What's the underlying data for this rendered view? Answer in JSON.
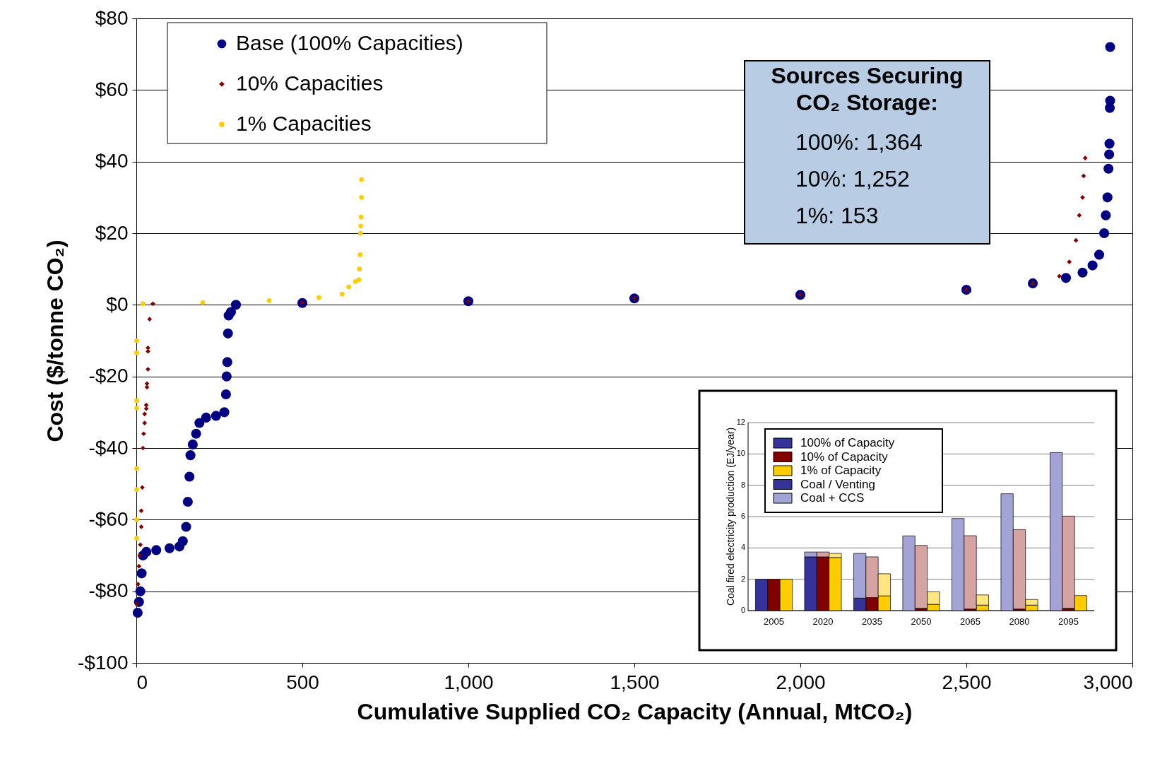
{
  "chart_data": [
    {
      "type": "scatter",
      "xlabel": "Cumulative Supplied CO₂ Capacity (Annual, MtCO₂)",
      "ylabel": "Cost ($/tonne CO₂)",
      "xlim": [
        0,
        3000
      ],
      "xticks": [
        0,
        500,
        {
          "value": 1000,
          "label": "1,000"
        },
        {
          "value": 1500,
          "label": "1,500"
        },
        {
          "value": 2000,
          "label": "2,000"
        },
        {
          "value": 2500,
          "label": "2,500"
        },
        {
          "value": 3000,
          "label": "3,000"
        }
      ],
      "ylim": [
        -100,
        80
      ],
      "yticks": [
        {
          "value": -100,
          "label": "-$100"
        },
        {
          "value": -80,
          "label": "-$80"
        },
        {
          "value": -60,
          "label": "-$60"
        },
        {
          "value": -40,
          "label": "-$40"
        },
        {
          "value": -20,
          "label": "-$20"
        },
        {
          "value": 0,
          "label": "$0"
        },
        {
          "value": 20,
          "label": "$20"
        },
        {
          "value": 40,
          "label": "$40"
        },
        {
          "value": 60,
          "label": "$60"
        },
        {
          "value": 80,
          "label": "$80"
        }
      ],
      "grid": "y",
      "legend": "top left",
      "annotations": [
        "Sources Securing CO₂ Storage:",
        "100%: 1,364",
        "10%: 1,252",
        "1%: 153"
      ],
      "series": [
        {
          "name": "Base (100% Capacities)",
          "color": "#000080",
          "marker": "circle",
          "x": [
            4,
            8,
            12,
            16,
            20,
            30,
            60,
            100,
            130,
            140,
            150,
            155,
            160,
            163,
            170,
            180,
            190,
            210,
            240,
            265,
            270,
            272,
            274,
            276,
            278,
            285,
            300,
            500,
            1000,
            1500,
            2000,
            2500,
            2700,
            2800,
            2850,
            2880,
            2900,
            2915,
            2920,
            2925,
            2928,
            2930,
            2931,
            2932,
            2933,
            2933
          ],
          "values": [
            -86,
            -83,
            -80,
            -75,
            -70,
            -69,
            -68.5,
            -68,
            -67.5,
            -66,
            -62,
            -55,
            -48,
            -42,
            -39,
            -36,
            -33,
            -31.5,
            -31,
            -30,
            -25,
            -20,
            -16,
            -8,
            -3,
            -2,
            0,
            0.5,
            1,
            1.8,
            2.8,
            4.2,
            6,
            7.5,
            9,
            11,
            14,
            20,
            25,
            30,
            38,
            42,
            45,
            55,
            57,
            72
          ]
        },
        {
          "name": "10% Capacities",
          "color": "#800000",
          "marker": "diamond",
          "x": [
            1,
            5,
            8,
            10,
            12,
            15,
            15,
            18,
            20,
            22,
            25,
            25,
            30,
            30,
            32,
            32,
            35,
            35,
            35,
            40,
            50,
            500,
            1000,
            1500,
            2000,
            2500,
            2700,
            2780,
            2810,
            2830,
            2840,
            2850,
            2853,
            2858
          ],
          "values": [
            -83.5,
            -78,
            -73,
            -70,
            -67,
            -62,
            -57.5,
            -51,
            -40,
            -36,
            -33,
            -30.5,
            -29,
            -28,
            -23,
            -22,
            -18,
            -13,
            -12,
            -4,
            0.3,
            0.6,
            1,
            1.8,
            2.8,
            4.2,
            6,
            8,
            12,
            18,
            25,
            30,
            36,
            41
          ]
        },
        {
          "name": "1% Capacities",
          "color": "#ffcc00",
          "marker": "circle",
          "x": [
            1,
            1,
            1,
            1,
            1,
            1,
            1,
            1,
            20,
            200,
            400,
            550,
            620,
            640,
            660,
            670,
            672,
            674,
            675,
            676,
            677,
            678,
            678
          ],
          "values": [
            -10,
            -13.4,
            -26.8,
            -28.8,
            -45.7,
            -51.6,
            -60,
            -65.2,
            0.3,
            0.6,
            1.2,
            2,
            3,
            5,
            6.5,
            7,
            10,
            14,
            20,
            22,
            24.5,
            30,
            35
          ]
        }
      ]
    },
    {
      "type": "bar",
      "stacked": true,
      "ylabel": "Coal fired electricity production (EJ/year)",
      "categories": [
        null,
        "2005",
        null,
        null,
        null,
        "2020",
        null,
        null,
        null,
        "2035",
        null,
        null,
        null,
        "2050",
        null,
        null,
        null,
        "2065",
        null,
        null,
        null,
        "2080",
        null,
        null,
        null,
        "2095",
        null
      ],
      "ylim": [
        0,
        12
      ],
      "yticks": [
        0,
        2,
        4,
        6,
        8,
        10,
        12
      ],
      "grid": "y",
      "legend": "top left",
      "annotations": [
        "100% of Capacity",
        "10% of Capacity",
        "1% of Capacity"
      ],
      "series": [
        {
          "name": "Coal / Venting",
          "colors": [
            "#333399",
            "#800000",
            "#ffcc00",
            null,
            "#333399",
            "#800000",
            "#ffcc00",
            null,
            "#333399",
            "#800000",
            "#ffcc00",
            null,
            "#333399",
            "#800000",
            "#ffcc00",
            null,
            "#333399",
            "#800000",
            "#ffcc00",
            null,
            "#333399",
            "#800000",
            "#ffcc00",
            null,
            "#333399",
            "#800000",
            "#ffcc00"
          ],
          "values": [
            2.0,
            2.0,
            2.0,
            null,
            3.43,
            3.43,
            3.39,
            null,
            0.8,
            0.83,
            0.94,
            null,
            null,
            0.15,
            0.4,
            null,
            null,
            0.1,
            0.35,
            null,
            null,
            0.1,
            0.35,
            null,
            null,
            0.15,
            0.96
          ]
        },
        {
          "name": "Coal + CCS",
          "colors": [
            "#a3a3d6",
            "#d6a3a3",
            "#ffe680",
            null,
            "#a3a3d6",
            "#d6a3a3",
            "#ffe680",
            null,
            "#a3a3d6",
            "#d6a3a3",
            "#ffe680",
            null,
            "#a3a3d6",
            "#d6a3a3",
            "#ffe680",
            null,
            "#a3a3d6",
            "#d6a3a3",
            "#ffe680",
            null,
            "#a3a3d6",
            "#d6a3a3",
            "#ffe680",
            null,
            "#a3a3d6",
            "#d6a3a3",
            "#ffe680"
          ],
          "values": [
            null,
            null,
            null,
            null,
            0.31,
            0.31,
            0.26,
            null,
            2.85,
            2.6,
            1.41,
            null,
            4.77,
            4.01,
            0.8,
            null,
            5.88,
            4.68,
            0.65,
            null,
            7.46,
            5.07,
            0.36,
            null,
            10.09,
            5.88,
            null
          ]
        }
      ]
    }
  ]
}
